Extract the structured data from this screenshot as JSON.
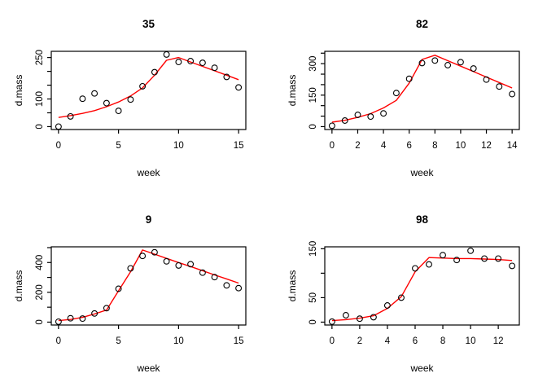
{
  "figure": {
    "background_color": "#ffffff",
    "fit_line_color": "#ff0000",
    "point_color": "#000000",
    "axis_color": "#000000"
  },
  "chart_data": [
    {
      "type": "scatter",
      "title": "35",
      "xlabel": "week",
      "ylabel": "d.mass",
      "xlim": [
        0,
        15
      ],
      "ylim": [
        0,
        262
      ],
      "x_ticks": [
        0,
        5,
        10,
        15
      ],
      "y_ticks": [
        0,
        50,
        100,
        150,
        200,
        250
      ],
      "y_ticks_labeled": [
        0,
        100,
        250
      ],
      "grid": false,
      "points": [
        [
          0,
          0
        ],
        [
          1,
          37
        ],
        [
          2,
          101
        ],
        [
          3,
          120
        ],
        [
          4,
          85
        ],
        [
          5,
          57
        ],
        [
          6,
          98
        ],
        [
          7,
          146
        ],
        [
          8,
          197
        ],
        [
          9,
          261
        ],
        [
          10,
          234
        ],
        [
          11,
          237
        ],
        [
          12,
          231
        ],
        [
          13,
          213
        ],
        [
          14,
          180
        ],
        [
          15,
          142
        ]
      ],
      "fit_line": [
        [
          0,
          33
        ],
        [
          1,
          40
        ],
        [
          2,
          48
        ],
        [
          3,
          58
        ],
        [
          4,
          72
        ],
        [
          5,
          89
        ],
        [
          6,
          111
        ],
        [
          7,
          140
        ],
        [
          8,
          186
        ],
        [
          9,
          240
        ],
        [
          10,
          250
        ],
        [
          11,
          234
        ],
        [
          12,
          218
        ],
        [
          13,
          202
        ],
        [
          14,
          186
        ],
        [
          15,
          170
        ]
      ]
    },
    {
      "type": "scatter",
      "title": "82",
      "xlabel": "week",
      "ylabel": "d.mass",
      "xlim": [
        0,
        14
      ],
      "ylim": [
        0,
        345
      ],
      "x_ticks": [
        0,
        2,
        4,
        6,
        8,
        10,
        12,
        14
      ],
      "y_ticks": [
        0,
        50,
        100,
        150,
        200,
        250,
        300,
        350
      ],
      "y_ticks_labeled": [
        0,
        150,
        300
      ],
      "grid": false,
      "points": [
        [
          0,
          4
        ],
        [
          1,
          29
        ],
        [
          2,
          56
        ],
        [
          3,
          48
        ],
        [
          4,
          63
        ],
        [
          5,
          160
        ],
        [
          6,
          228
        ],
        [
          7,
          303
        ],
        [
          8,
          315
        ],
        [
          9,
          293
        ],
        [
          10,
          307
        ],
        [
          11,
          277
        ],
        [
          12,
          224
        ],
        [
          13,
          191
        ],
        [
          14,
          155
        ]
      ],
      "fit_line": [
        [
          0,
          21
        ],
        [
          1,
          30
        ],
        [
          2,
          44
        ],
        [
          3,
          62
        ],
        [
          4,
          89
        ],
        [
          5,
          125
        ],
        [
          6,
          207
        ],
        [
          7,
          320
        ],
        [
          8,
          340
        ],
        [
          9,
          314
        ],
        [
          10,
          288
        ],
        [
          11,
          262
        ],
        [
          12,
          236
        ],
        [
          13,
          210
        ],
        [
          14,
          184
        ]
      ]
    },
    {
      "type": "scatter",
      "title": "9",
      "xlabel": "week",
      "ylabel": "d.mass",
      "xlim": [
        0,
        15
      ],
      "ylim": [
        0,
        486
      ],
      "x_ticks": [
        0,
        5,
        10,
        15
      ],
      "y_ticks": [
        0,
        100,
        200,
        300,
        400,
        500
      ],
      "y_ticks_labeled": [
        0,
        200,
        400
      ],
      "grid": false,
      "points": [
        [
          0,
          3
        ],
        [
          1,
          26
        ],
        [
          2,
          24
        ],
        [
          3,
          58
        ],
        [
          4,
          94
        ],
        [
          5,
          224
        ],
        [
          6,
          361
        ],
        [
          7,
          444
        ],
        [
          8,
          469
        ],
        [
          9,
          408
        ],
        [
          10,
          380
        ],
        [
          11,
          389
        ],
        [
          12,
          332
        ],
        [
          13,
          302
        ],
        [
          14,
          247
        ],
        [
          15,
          228
        ]
      ],
      "fit_line": [
        [
          0,
          10
        ],
        [
          1,
          18
        ],
        [
          2,
          32
        ],
        [
          3,
          55
        ],
        [
          4,
          81
        ],
        [
          5,
          210
        ],
        [
          6,
          338
        ],
        [
          7,
          484
        ],
        [
          8,
          456
        ],
        [
          9,
          428
        ],
        [
          10,
          400
        ],
        [
          11,
          373
        ],
        [
          12,
          345
        ],
        [
          13,
          317
        ],
        [
          14,
          290
        ],
        [
          15,
          262
        ]
      ]
    },
    {
      "type": "scatter",
      "title": "98",
      "xlabel": "week",
      "ylabel": "d.mass",
      "xlim": [
        0,
        13
      ],
      "ylim": [
        0,
        148
      ],
      "x_ticks": [
        0,
        2,
        4,
        6,
        8,
        10,
        12
      ],
      "y_ticks": [
        0,
        50,
        100,
        150
      ],
      "y_ticks_labeled": [
        0,
        50,
        150
      ],
      "grid": false,
      "points": [
        [
          0,
          1
        ],
        [
          1,
          14
        ],
        [
          2,
          7
        ],
        [
          3,
          10
        ],
        [
          4,
          34
        ],
        [
          5,
          50
        ],
        [
          6,
          110
        ],
        [
          7,
          118
        ],
        [
          8,
          137
        ],
        [
          9,
          127
        ],
        [
          10,
          146
        ],
        [
          11,
          130
        ],
        [
          12,
          130
        ],
        [
          13,
          115
        ]
      ],
      "fit_line": [
        [
          0,
          3
        ],
        [
          1,
          5
        ],
        [
          2,
          8
        ],
        [
          3,
          13
        ],
        [
          4,
          28
        ],
        [
          5,
          52
        ],
        [
          6,
          103
        ],
        [
          7,
          132
        ],
        [
          8,
          131
        ],
        [
          9,
          130
        ],
        [
          10,
          130
        ],
        [
          11,
          129
        ],
        [
          12,
          128
        ],
        [
          13,
          126
        ]
      ]
    }
  ]
}
